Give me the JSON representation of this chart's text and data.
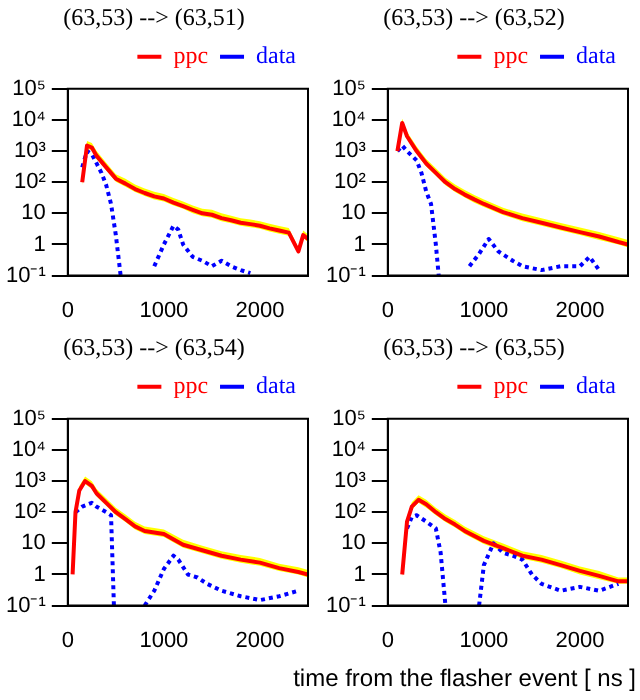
{
  "chart_data": [
    {
      "type": "line",
      "title": "(63,53) --> (63,51)",
      "log": "y",
      "legend": "top",
      "xlim": [
        0,
        2500
      ],
      "xticks": [
        0,
        1000,
        2000
      ],
      "ylim": [
        0.1,
        100000
      ],
      "yticks": [
        {
          "value": 0.1,
          "label": "10⁻¹"
        },
        {
          "value": 1,
          "label": "1"
        },
        {
          "value": 10,
          "label": "10"
        },
        {
          "value": 100,
          "label": "10²"
        },
        {
          "value": 1000,
          "label": "10³"
        },
        {
          "value": 10000,
          "label": "10⁴"
        },
        {
          "value": 100000,
          "label": "10⁵"
        }
      ],
      "series": [
        {
          "name": "ppc",
          "color": "#ff0000",
          "line_style": "solid",
          "x": [
            150,
            200,
            250,
            300,
            400,
            500,
            600,
            700,
            800,
            900,
            1000,
            1100,
            1200,
            1300,
            1400,
            1500,
            1600,
            1700,
            1800,
            1900,
            2000,
            2100,
            2200,
            2300,
            2400,
            2450,
            2500
          ],
          "values": [
            100,
            1500,
            1300,
            700,
            300,
            130,
            90,
            60,
            45,
            35,
            30,
            22,
            17,
            13,
            10,
            9,
            7,
            6,
            5,
            4.5,
            4,
            3.3,
            2.8,
            2.4,
            0.6,
            2,
            1.5
          ],
          "upper": [
            140,
            2100,
            1800,
            1000,
            420,
            180,
            130,
            85,
            63,
            49,
            42,
            31,
            24,
            18,
            14,
            13,
            10,
            8.4,
            7,
            6.3,
            5.6,
            4.6,
            3.9,
            3.4,
            0.8,
            2.8,
            2.1
          ],
          "lower": [
            80,
            1200,
            1040,
            560,
            240,
            104,
            72,
            48,
            36,
            28,
            24,
            18,
            14,
            10,
            8,
            7.2,
            5.6,
            4.8,
            4,
            3.6,
            3.2,
            2.6,
            2.2,
            1.9,
            0.5,
            1.6,
            1.2
          ]
        },
        {
          "name": "data",
          "color": "#0000ff",
          "line_style": "dotted",
          "x": [
            150,
            200,
            250,
            300,
            350,
            400,
            450,
            500,
            550,
            700,
            900,
            1000,
            1100,
            1150,
            1200,
            1300,
            1400,
            1500,
            1600,
            1700,
            1800,
            1900
          ],
          "values": [
            300,
            1000,
            800,
            400,
            200,
            80,
            20,
            2,
            0.1,
            null,
            0.2,
            1,
            4,
            3,
            1,
            0.4,
            0.3,
            0.2,
            0.3,
            0.2,
            0.15,
            0.12
          ]
        }
      ]
    },
    {
      "type": "line",
      "title": "(63,53) --> (63,52)",
      "log": "y",
      "legend": "top",
      "xlim": [
        0,
        2500
      ],
      "xticks": [
        0,
        1000,
        2000
      ],
      "ylim": [
        0.1,
        100000
      ],
      "yticks": [
        {
          "value": 0.1,
          "label": "10⁻¹"
        },
        {
          "value": 1,
          "label": "1"
        },
        {
          "value": 10,
          "label": "10"
        },
        {
          "value": 100,
          "label": "10²"
        },
        {
          "value": 1000,
          "label": "10³"
        },
        {
          "value": 10000,
          "label": "10⁴"
        },
        {
          "value": 100000,
          "label": "10⁵"
        }
      ],
      "series": [
        {
          "name": "ppc",
          "color": "#ff0000",
          "line_style": "solid",
          "x": [
            100,
            150,
            200,
            300,
            400,
            500,
            600,
            700,
            800,
            900,
            1000,
            1200,
            1400,
            1600,
            1800,
            2000,
            2200,
            2400,
            2500
          ],
          "values": [
            1000,
            8000,
            3000,
            1000,
            400,
            200,
            100,
            60,
            40,
            28,
            20,
            11,
            7,
            5,
            3.5,
            2.5,
            1.8,
            1.2,
            1
          ],
          "upper": [
            1400,
            11000,
            4200,
            1400,
            560,
            280,
            140,
            84,
            56,
            39,
            28,
            15,
            9.8,
            7,
            4.9,
            3.5,
            2.5,
            1.7,
            1.4
          ],
          "lower": [
            800,
            6400,
            2400,
            800,
            320,
            160,
            80,
            48,
            32,
            22,
            16,
            8.8,
            5.6,
            4,
            2.8,
            2,
            1.4,
            1,
            0.8
          ]
        },
        {
          "name": "data",
          "color": "#0000ff",
          "line_style": "dotted",
          "x": [
            100,
            150,
            200,
            300,
            350,
            400,
            450,
            500,
            530,
            700,
            850,
            950,
            1050,
            1150,
            1300,
            1400,
            1600,
            1800,
            2000,
            2100,
            2200
          ],
          "values": [
            1000,
            1500,
            1000,
            500,
            200,
            50,
            20,
            1,
            0.1,
            null,
            0.2,
            0.5,
            1.5,
            0.6,
            0.3,
            0.2,
            0.15,
            0.2,
            0.2,
            0.4,
            0.15
          ]
        }
      ]
    },
    {
      "type": "line",
      "title": "(63,53) --> (63,54)",
      "log": "y",
      "legend": "top",
      "xlim": [
        0,
        2500
      ],
      "xticks": [
        0,
        1000,
        2000
      ],
      "ylim": [
        0.1,
        100000
      ],
      "yticks": [
        {
          "value": 0.1,
          "label": "10⁻¹"
        },
        {
          "value": 1,
          "label": "1"
        },
        {
          "value": 10,
          "label": "10"
        },
        {
          "value": 100,
          "label": "10²"
        },
        {
          "value": 1000,
          "label": "10³"
        },
        {
          "value": 10000,
          "label": "10⁴"
        },
        {
          "value": 100000,
          "label": "10⁵"
        }
      ],
      "series": [
        {
          "name": "ppc",
          "color": "#ff0000",
          "line_style": "solid",
          "x": [
            50,
            80,
            120,
            180,
            250,
            300,
            400,
            500,
            600,
            700,
            800,
            1000,
            1200,
            1400,
            1600,
            1800,
            2000,
            2200,
            2400,
            2500
          ],
          "values": [
            1,
            100,
            500,
            1000,
            700,
            400,
            200,
            100,
            60,
            35,
            25,
            20,
            9,
            6,
            4,
            3,
            2.4,
            1.6,
            1.2,
            1
          ],
          "upper": [
            1.4,
            140,
            700,
            1400,
            980,
            560,
            280,
            140,
            84,
            49,
            35,
            28,
            13,
            8.4,
            5.6,
            4.2,
            3.4,
            2.2,
            1.7,
            1.4
          ],
          "lower": [
            0.8,
            80,
            400,
            800,
            560,
            320,
            160,
            80,
            48,
            28,
            20,
            16,
            7.2,
            4.8,
            3.2,
            2.4,
            1.9,
            1.3,
            1,
            0.8
          ]
        },
        {
          "name": "data",
          "color": "#0000ff",
          "line_style": "dotted",
          "x": [
            80,
            150,
            250,
            300,
            400,
            450,
            480,
            650,
            800,
            900,
            1000,
            1100,
            1150,
            1250,
            1350,
            1450,
            1600,
            1800,
            2000,
            2200,
            2400
          ],
          "values": [
            100,
            150,
            200,
            150,
            100,
            80,
            0.1,
            null,
            0.1,
            0.3,
            1.5,
            4,
            3,
            1,
            0.8,
            0.5,
            0.3,
            0.2,
            0.15,
            0.2,
            0.3
          ]
        }
      ]
    },
    {
      "type": "line",
      "title": "(63,53) --> (63,55)",
      "xlabel": "time from the flasher event [ ns ]",
      "log": "y",
      "legend": "top",
      "xlim": [
        0,
        2500
      ],
      "xticks": [
        0,
        1000,
        2000
      ],
      "ylim": [
        0.1,
        100000
      ],
      "yticks": [
        {
          "value": 0.1,
          "label": "10⁻¹"
        },
        {
          "value": 1,
          "label": "1"
        },
        {
          "value": 10,
          "label": "10"
        },
        {
          "value": 100,
          "label": "10²"
        },
        {
          "value": 1000,
          "label": "10³"
        },
        {
          "value": 10000,
          "label": "10⁴"
        },
        {
          "value": 100000,
          "label": "10⁵"
        }
      ],
      "series": [
        {
          "name": "ppc",
          "color": "#ff0000",
          "line_style": "solid",
          "x": [
            150,
            200,
            250,
            320,
            400,
            500,
            600,
            700,
            800,
            1000,
            1200,
            1400,
            1600,
            1800,
            2000,
            2200,
            2400,
            2500
          ],
          "values": [
            1,
            50,
            150,
            250,
            180,
            100,
            60,
            40,
            25,
            12,
            7,
            4,
            3,
            2,
            1.3,
            0.9,
            0.6,
            0.6
          ],
          "upper": [
            1.4,
            70,
            210,
            350,
            250,
            140,
            84,
            56,
            35,
            17,
            9.8,
            5.6,
            4.2,
            2.8,
            1.8,
            1.3,
            0.8,
            0.8
          ],
          "lower": [
            0.8,
            40,
            120,
            200,
            140,
            80,
            48,
            32,
            20,
            9.6,
            5.6,
            3.2,
            2.4,
            1.6,
            1,
            0.7,
            0.5,
            0.5
          ]
        },
        {
          "name": "data",
          "color": "#0000ff",
          "line_style": "dotted",
          "x": [
            200,
            250,
            300,
            400,
            500,
            550,
            600,
            800,
            950,
            1000,
            1100,
            1200,
            1300,
            1400,
            1500,
            1600,
            1800,
            2000,
            2200,
            2400
          ],
          "values": [
            30,
            70,
            80,
            50,
            30,
            5,
            0.1,
            null,
            0.1,
            2,
            10,
            5,
            4,
            3,
            1,
            0.5,
            0.3,
            0.4,
            0.3,
            0.5
          ]
        }
      ]
    }
  ]
}
